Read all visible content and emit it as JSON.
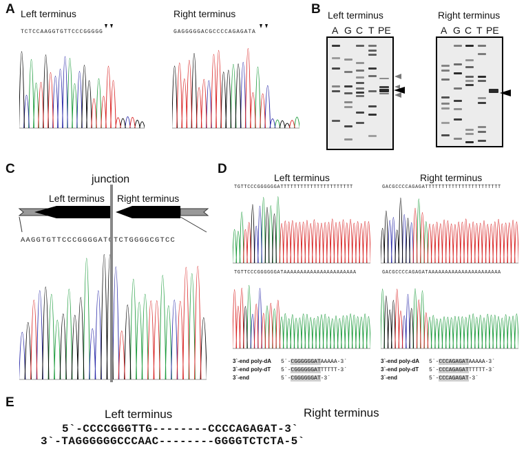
{
  "panel_labels": {
    "a": "A",
    "b": "B",
    "c": "C",
    "d": "D",
    "e": "E"
  },
  "panel_a": {
    "left_title": "Left terminus",
    "right_title": "Right terminus",
    "left_seq": "TCTCCAAGGTGTTCCCGGGGG",
    "right_seq": "GAGGGGGACGCCCCAGAGATA"
  },
  "panel_b": {
    "left_title": "Left terminus",
    "right_title": "Right terminus",
    "lanes": [
      "A",
      "G",
      "C",
      "T",
      "PE"
    ]
  },
  "panel_c": {
    "junction": "junction",
    "left_label": "Left terminus",
    "right_label": "Right terminus",
    "seq": "AAGGTGTTCCCGGGGATCTCTGGGGCGTCC"
  },
  "panel_d": {
    "left_title": "Left terminus",
    "right_title": "Right terminus",
    "seq_left_top": "TGTTCCCGGGGGGATTTTTTTTTTTTTTTTTTTTTT",
    "seq_right_top": "GACGCCCCAGAGATTTTTTTTTTTTTTTTTTTTTTT",
    "seq_left_bottom": "TGTTCCCGGGGGGATAAAAAAAAAAAAAAAAAAAAAA",
    "seq_right_bottom": "GACGCCCCAGAGATAAAAAAAAAAAAAAAAAAAAAA",
    "table": {
      "keys": [
        "3`-end poly-dA",
        "3`-end poly-dT",
        "3`-end"
      ],
      "left": [
        {
          "pre": "5`-",
          "core": "CGGGGGGAT",
          "tail": "AAAAA-3`"
        },
        {
          "pre": "5`-",
          "core": "CGGGGGGAT",
          "tail": "TTTTT-3`"
        },
        {
          "pre": "5`-",
          "core": "CGGGGGGAT",
          "tail": "-3`"
        }
      ],
      "right": [
        {
          "pre": "5`-",
          "core": "CCCAGAGAT",
          "tail": "AAAAA-3`"
        },
        {
          "pre": "5`-",
          "core": "CCCAGAGAT",
          "tail": "TTTTT-3`"
        },
        {
          "pre": "5`-",
          "core": "CCCAGAGAT",
          "tail": "-3`"
        }
      ]
    }
  },
  "panel_e": {
    "left_title": "Left terminus",
    "right_title": "Right terminus",
    "top_strand": "5`-CCCCGGGTTG--------CCCCAGAGAT-3`",
    "bottom_strand": "3`-TAGGGGGGCCCAAC--------GGGGTCTCTA-5`"
  },
  "trace_colors": {
    "A": "#1a9a3a",
    "C": "#2a2aa8",
    "G": "#000000",
    "T": "#d82020"
  }
}
